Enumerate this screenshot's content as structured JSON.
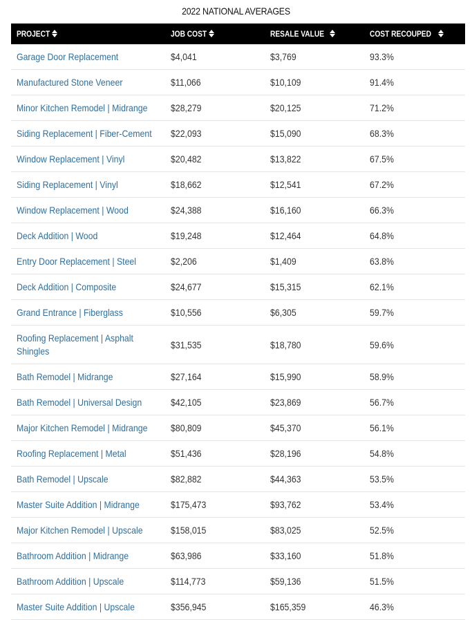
{
  "title": "2022 NATIONAL AVERAGES",
  "headers": {
    "project": "PROJECT",
    "job_cost": "JOB COST",
    "resale_value": "RESALE VALUE",
    "cost_recouped": "COST RECOUPED"
  },
  "icons": {
    "sort": "sort-icon"
  },
  "colors": {
    "header_bg": "#000000",
    "link": "#2f6fa0",
    "text": "#333333"
  },
  "chart_data": {
    "type": "table",
    "title": "2022 NATIONAL AVERAGES",
    "columns": [
      "PROJECT",
      "JOB COST",
      "RESALE VALUE",
      "COST RECOUPED"
    ],
    "rows": [
      [
        "Garage Door Replacement",
        "$4,041",
        "$3,769",
        "93.3%"
      ],
      [
        "Manufactured Stone Veneer",
        "$11,066",
        "$10,109",
        "91.4%"
      ],
      [
        "Minor Kitchen Remodel | Midrange",
        "$28,279",
        "$20,125",
        "71.2%"
      ],
      [
        "Siding Replacement | Fiber-Cement",
        "$22,093",
        "$15,090",
        "68.3%"
      ],
      [
        "Window Replacement | Vinyl",
        "$20,482",
        "$13,822",
        "67.5%"
      ],
      [
        "Siding Replacement | Vinyl",
        "$18,662",
        "$12,541",
        "67.2%"
      ],
      [
        "Window Replacement | Wood",
        "$24,388",
        "$16,160",
        "66.3%"
      ],
      [
        "Deck Addition | Wood",
        "$19,248",
        "$12,464",
        "64.8%"
      ],
      [
        "Entry Door Replacement | Steel",
        "$2,206",
        "$1,409",
        "63.8%"
      ],
      [
        "Deck Addition | Composite",
        "$24,677",
        "$15,315",
        "62.1%"
      ],
      [
        "Grand Entrance | Fiberglass",
        "$10,556",
        "$6,305",
        "59.7%"
      ],
      [
        "Roofing Replacement | Asphalt Shingles",
        "$31,535",
        "$18,780",
        "59.6%"
      ],
      [
        "Bath Remodel | Midrange",
        "$27,164",
        "$15,990",
        "58.9%"
      ],
      [
        "Bath Remodel | Universal Design",
        "$42,105",
        "$23,869",
        "56.7%"
      ],
      [
        "Major Kitchen Remodel | Midrange",
        "$80,809",
        "$45,370",
        "56.1%"
      ],
      [
        "Roofing Replacement | Metal",
        "$51,436",
        "$28,196",
        "54.8%"
      ],
      [
        "Bath Remodel | Upscale",
        "$82,882",
        "$44,363",
        "53.5%"
      ],
      [
        "Master Suite Addition | Midrange",
        "$175,473",
        "$93,762",
        "53.4%"
      ],
      [
        "Major Kitchen Remodel | Upscale",
        "$158,015",
        "$83,025",
        "52.5%"
      ],
      [
        "Bathroom Addition | Midrange",
        "$63,986",
        "$33,160",
        "51.8%"
      ],
      [
        "Bathroom Addition | Upscale",
        "$114,773",
        "$59,136",
        "51.5%"
      ],
      [
        "Master Suite Addition | Upscale",
        "$356,945",
        "$165,359",
        "46.3%"
      ]
    ]
  }
}
